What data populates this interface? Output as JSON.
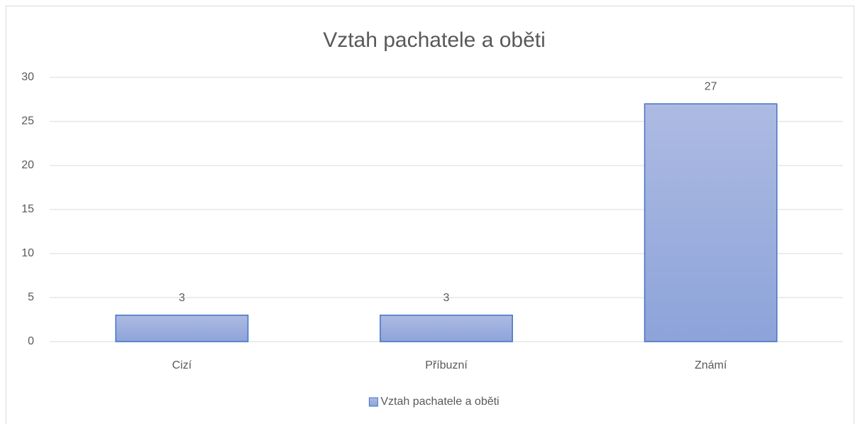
{
  "chart_data": {
    "type": "bar",
    "title": "Vztah pachatele a oběti",
    "categories": [
      "Cizí",
      "Příbuzní",
      "Známí"
    ],
    "series": [
      {
        "name": "Vztah pachatele a oběti",
        "color": "#8da3d9",
        "edge_color": "#4472c4",
        "values": [
          3,
          3,
          27
        ]
      }
    ],
    "ylim": [
      0,
      30
    ],
    "yticks": [
      0,
      5,
      10,
      15,
      20,
      25,
      30
    ],
    "grid": true,
    "data_labels": true,
    "legend": "bottom"
  }
}
